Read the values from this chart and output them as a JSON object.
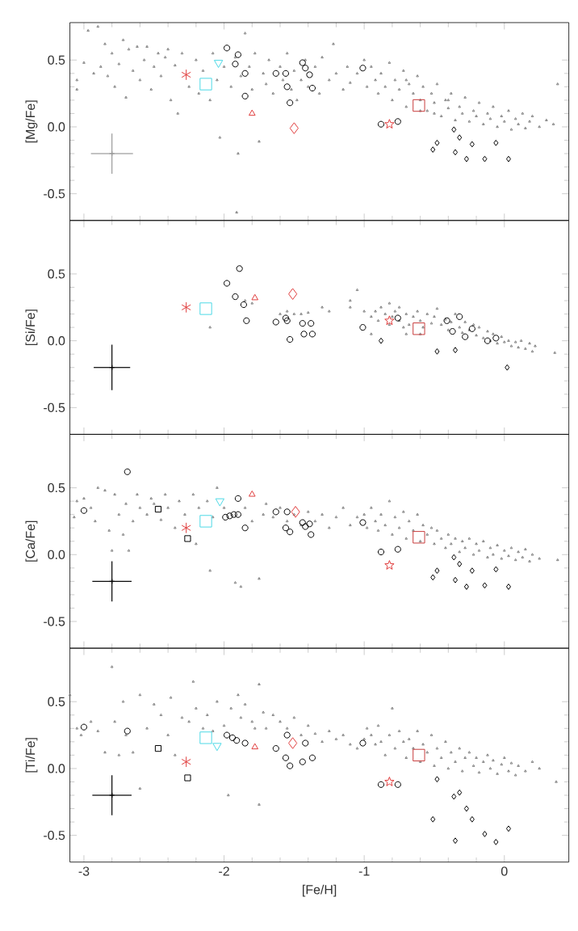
{
  "chart_data": [
    {
      "type": "scatter",
      "ylabel": "[Mg/Fe]",
      "xlim": [
        -3.1,
        0.46
      ],
      "ylim": [
        -0.7,
        0.78
      ],
      "xticks": [
        -3,
        -2,
        -1,
        0
      ],
      "yticks": [
        {
          "value": -0.5,
          "label": "-0.5"
        },
        {
          "value": 0,
          "label": "0.0"
        },
        {
          "value": 0.5,
          "label": "0.5"
        }
      ],
      "tick_labels": "y",
      "series": [
        {
          "marker": "triangle",
          "color": "#808080",
          "x": [
            -3.05,
            -3.05,
            -3.0,
            -2.97,
            -2.93,
            -2.9,
            -2.88,
            -2.85,
            -2.83,
            -2.8,
            -2.78,
            -2.75,
            -2.72,
            -2.7,
            -2.68,
            -2.65,
            -2.62,
            -2.6,
            -2.57,
            -2.55,
            -2.52,
            -2.5,
            -2.47,
            -2.45,
            -2.42,
            -2.4,
            -2.38,
            -2.35,
            -2.33,
            -2.3,
            -2.25,
            -2.2,
            -2.18,
            -2.15,
            -2.1,
            -2.08,
            -2.05,
            -2.03,
            -2.0,
            -1.95,
            -1.92,
            -1.9,
            -1.88,
            -1.85,
            -1.82,
            -1.8,
            -1.78,
            -1.75,
            -1.72,
            -1.7,
            -1.68,
            -1.65,
            -1.6,
            -1.58,
            -1.55,
            -1.52,
            -1.5,
            -1.48,
            -1.45,
            -1.42,
            -1.4,
            -1.35,
            -1.32,
            -1.3,
            -1.25,
            -1.22,
            -1.2,
            -1.15,
            -1.12,
            -1.1,
            -1.05,
            -1.0,
            -1.91,
            -0.98,
            -0.95,
            -0.92,
            -0.9,
            -0.88,
            -0.85,
            -0.82,
            -0.8,
            -0.78,
            -0.75,
            -0.72,
            -0.7,
            -0.68,
            -0.65,
            -0.62,
            -0.6,
            -0.58,
            -0.55,
            -0.52,
            -0.5,
            -0.48,
            -0.45,
            -0.42,
            -0.4,
            -0.38,
            -0.35,
            -0.32,
            -0.3,
            -0.28,
            -0.25,
            -0.22,
            -0.2,
            -0.18,
            -0.15,
            -0.12,
            -0.1,
            -0.08,
            -0.05,
            -0.02,
            0.0,
            0.03,
            0.05,
            0.08,
            0.1,
            0.13,
            0.15,
            0.18,
            0.2,
            0.25,
            0.3,
            0.38,
            0.35,
            -0.7,
            -0.6,
            -0.5,
            -0.4
          ],
          "values": [
            0.35,
            0.28,
            0.48,
            0.72,
            0.4,
            0.75,
            0.45,
            0.62,
            0.38,
            0.55,
            0.3,
            0.47,
            0.65,
            0.22,
            0.58,
            0.42,
            0.6,
            0.35,
            0.5,
            0.6,
            0.28,
            0.45,
            0.55,
            0.38,
            0.52,
            0.58,
            0.2,
            0.46,
            0.1,
            0.55,
            0.3,
            0.5,
            0.25,
            0.42,
            0.2,
            0.55,
            0.35,
            -0.08,
            0.45,
            0.3,
            0.52,
            -0.2,
            0.38,
            0.7,
            0.45,
            0.28,
            0.55,
            -0.11,
            0.4,
            0.32,
            0.5,
            0.25,
            0.45,
            0.35,
            0.55,
            0.28,
            0.42,
            0.2,
            0.35,
            0.5,
            0.3,
            0.45,
            0.25,
            0.52,
            0.35,
            0.62,
            0.4,
            0.28,
            0.45,
            0.33,
            0.4,
            0.5,
            -0.64,
            0.3,
            0.45,
            0.35,
            0.25,
            0.4,
            0.3,
            0.48,
            0.2,
            0.35,
            0.28,
            0.42,
            0.15,
            0.32,
            0.25,
            0.38,
            0.2,
            0.3,
            0.12,
            0.25,
            0.18,
            0.32,
            0.08,
            0.2,
            0.14,
            0.25,
            0.05,
            0.15,
            0.1,
            0.22,
            0.04,
            0.12,
            0.08,
            0.18,
            0.02,
            0.1,
            0.06,
            0.15,
            0.0,
            0.08,
            0.04,
            0.12,
            -0.02,
            0.06,
            0.02,
            0.1,
            -0.01,
            0.04,
            0.08,
            0.0,
            0.05,
            0.32,
            0.02,
            0.35,
            0.12,
            0.1,
            0.2
          ]
        },
        {
          "marker": "circle",
          "color": "#000000",
          "x": [
            -1.9,
            -1.85,
            -1.85,
            -1.63,
            -1.56,
            -1.55,
            -1.53,
            -1.44,
            -1.42,
            -1.39,
            -1.37,
            -1.01,
            -0.88,
            -0.76
          ],
          "values": [
            0.54,
            0.4,
            0.23,
            0.4,
            0.4,
            0.3,
            0.18,
            0.48,
            0.44,
            0.39,
            0.29,
            0.44,
            0.02,
            0.04
          ]
        },
        {
          "marker": "diamond",
          "color": "#000000",
          "x": [
            -0.36,
            -0.48,
            -0.51,
            -0.32,
            -0.35,
            -0.23,
            -0.27,
            -0.14,
            -0.06,
            0.03
          ],
          "values": [
            -0.02,
            -0.12,
            -0.17,
            -0.08,
            -0.19,
            -0.13,
            -0.24,
            -0.24,
            -0.12,
            -0.24
          ]
        },
        {
          "marker": "circle",
          "color": "#000000",
          "x": [
            -1.98,
            -1.92
          ],
          "values": [
            0.59,
            0.47
          ]
        },
        {
          "marker": "cross",
          "color": "#e03c3c",
          "x": [
            -2.27
          ],
          "values": [
            0.39
          ]
        },
        {
          "marker": "triangle down",
          "color": "#4dd9e6",
          "x": [
            -2.04
          ],
          "values": [
            0.48
          ]
        },
        {
          "marker": "square",
          "color": "#4dd9e6",
          "x": [
            -2.13
          ],
          "values": [
            0.32
          ]
        },
        {
          "marker": "triangle",
          "color": "#e03c3c",
          "x": [
            -1.8
          ],
          "values": [
            0.1
          ]
        },
        {
          "marker": "diamond",
          "color": "#e03c3c",
          "x": [
            -1.5
          ],
          "values": [
            -0.01
          ]
        },
        {
          "marker": "square",
          "color": "#c83c3c",
          "x": [
            -0.61
          ],
          "values": [
            0.16
          ]
        },
        {
          "marker": "star",
          "color": "#e03c3c",
          "x": [
            -0.82
          ],
          "values": [
            0.02
          ]
        },
        {
          "color": "#999999",
          "x": [
            -2.8
          ],
          "values": [
            -0.2
          ],
          "errors": [
            0.15
          ],
          "xerrors": [
            0.15
          ]
        }
      ]
    },
    {
      "type": "scatter",
      "ylabel": "[Si/Fe]",
      "xlim": [
        -3.1,
        0.46
      ],
      "ylim": [
        -0.7,
        0.9
      ],
      "xticks": [
        -3,
        -2,
        -1,
        0
      ],
      "yticks": [
        {
          "value": -0.5,
          "label": "-0.5"
        },
        {
          "value": 0,
          "label": "0.0"
        },
        {
          "value": 0.5,
          "label": "0.5"
        }
      ],
      "tick_labels": "y",
      "series": [
        {
          "marker": "triangle",
          "color": "#808080",
          "x": [
            -2.1,
            -1.85,
            -1.8,
            -1.6,
            -1.55,
            -1.5,
            -1.45,
            -1.4,
            -1.3,
            -1.25,
            -1.1,
            -1.1,
            -1.05,
            -1.0,
            -0.95,
            -0.92,
            -0.9,
            -0.88,
            -0.85,
            -0.82,
            -0.8,
            -0.78,
            -0.75,
            -0.72,
            -0.7,
            -0.68,
            -0.65,
            -0.62,
            -0.6,
            -0.58,
            -0.55,
            -0.52,
            -0.5,
            -0.48,
            -0.45,
            -0.42,
            -0.4,
            -0.38,
            -0.35,
            -0.32,
            -0.3,
            -0.28,
            -0.25,
            -0.22,
            -0.2,
            -0.18,
            -0.15,
            -0.12,
            -0.1,
            -0.08,
            -0.05,
            -0.02,
            0.0,
            0.03,
            0.05,
            0.08,
            0.1,
            0.12,
            0.15,
            0.18,
            0.2,
            0.22,
            0.36,
            -0.7,
            -0.95,
            -0.6,
            -0.75,
            -0.82
          ],
          "values": [
            0.1,
            0.3,
            0.28,
            0.2,
            0.22,
            0.2,
            0.2,
            0.21,
            0.25,
            0.22,
            0.25,
            0.3,
            0.38,
            0.22,
            0.18,
            0.22,
            0.15,
            0.25,
            0.2,
            0.12,
            0.18,
            0.22,
            0.15,
            0.1,
            0.2,
            0.12,
            0.18,
            0.22,
            0.15,
            0.1,
            0.2,
            0.13,
            0.18,
            0.24,
            0.12,
            0.16,
            0.08,
            0.14,
            0.2,
            0.1,
            0.06,
            0.14,
            0.08,
            0.12,
            0.04,
            0.1,
            0.02,
            0.07,
            0.0,
            0.05,
            -0.02,
            0.03,
            -0.01,
            0.0,
            -0.04,
            -0.01,
            -0.05,
            0.0,
            -0.06,
            -0.02,
            -0.08,
            -0.04,
            -0.09,
            0.05,
            0.05,
            0.05,
            0.25,
            0.28
          ]
        },
        {
          "marker": "circle",
          "color": "#000000",
          "x": [
            -1.89,
            -1.86,
            -1.84,
            -1.63,
            -1.56,
            -1.55,
            -1.53,
            -1.44,
            -1.38,
            -1.43,
            -1.37,
            -1.01,
            -0.76,
            -0.41,
            -0.32,
            -0.37,
            -0.23,
            -0.28,
            -0.12,
            -0.06
          ],
          "values": [
            0.54,
            0.27,
            0.15,
            0.14,
            0.17,
            0.15,
            0.01,
            0.13,
            0.13,
            0.05,
            0.05,
            0.1,
            0.17,
            0.15,
            0.18,
            0.07,
            0.09,
            0.03,
            0.0,
            0.02
          ]
        },
        {
          "marker": "diamond",
          "color": "#000000",
          "x": [
            -0.88,
            -0.48,
            -0.35,
            0.02
          ],
          "values": [
            0.0,
            -0.08,
            -0.07,
            -0.2
          ]
        },
        {
          "marker": "circle",
          "color": "#000000",
          "x": [
            -1.98,
            -1.92
          ],
          "values": [
            0.43,
            0.33
          ]
        },
        {
          "marker": "cross",
          "color": "#e03c3c",
          "x": [
            -2.27
          ],
          "values": [
            0.25
          ]
        },
        {
          "marker": "square",
          "color": "#4dd9e6",
          "x": [
            -2.13
          ],
          "values": [
            0.24
          ]
        },
        {
          "marker": "triangle",
          "color": "#e03c3c",
          "x": [
            -1.78
          ],
          "values": [
            0.32
          ]
        },
        {
          "marker": "diamond",
          "color": "#e03c3c",
          "x": [
            -1.51
          ],
          "values": [
            0.35
          ]
        },
        {
          "marker": "square",
          "color": "#c83c3c",
          "x": [
            -0.61
          ],
          "values": [
            0.09
          ]
        },
        {
          "marker": "star",
          "color": "#e03c3c",
          "x": [
            -0.82
          ],
          "values": [
            0.15
          ]
        },
        {
          "color": "#000000",
          "x": [
            -2.8
          ],
          "values": [
            -0.2
          ],
          "errors": [
            0.17
          ],
          "xerrors": [
            0.13
          ]
        }
      ]
    },
    {
      "type": "scatter",
      "ylabel": "[Ca/Fe]",
      "xlim": [
        -3.1,
        0.46
      ],
      "ylim": [
        -0.7,
        0.9
      ],
      "xticks": [
        -3,
        -2,
        -1,
        0
      ],
      "yticks": [
        {
          "value": -0.5,
          "label": "-0.5"
        },
        {
          "value": 0,
          "label": "0.0"
        },
        {
          "value": 0.5,
          "label": "0.5"
        }
      ],
      "tick_labels": "y",
      "series": [
        {
          "marker": "triangle",
          "color": "#808080",
          "x": [
            -3.07,
            -3.05,
            -3.0,
            -2.95,
            -2.92,
            -2.9,
            -2.85,
            -2.82,
            -2.8,
            -2.78,
            -2.75,
            -2.72,
            -2.7,
            -2.68,
            -2.65,
            -2.62,
            -2.6,
            -2.55,
            -2.52,
            -2.5,
            -2.45,
            -2.42,
            -2.4,
            -2.35,
            -2.32,
            -2.28,
            -2.22,
            -2.2,
            -2.18,
            -2.12,
            -2.1,
            -2.08,
            -2.05,
            -2.0,
            -1.92,
            -1.88,
            -1.85,
            -1.8,
            -1.75,
            -1.72,
            -1.7,
            -1.65,
            -1.6,
            -1.55,
            -1.5,
            -1.45,
            -1.4,
            -1.35,
            -1.3,
            -1.25,
            -1.2,
            -1.15,
            -1.1,
            -1.05,
            -1.0,
            -0.98,
            -0.95,
            -0.92,
            -0.9,
            -0.88,
            -0.85,
            -0.82,
            -0.8,
            -0.78,
            -0.75,
            -0.72,
            -0.7,
            -0.68,
            -0.65,
            -0.62,
            -0.6,
            -0.58,
            -0.55,
            -0.52,
            -0.5,
            -0.48,
            -0.45,
            -0.42,
            -0.4,
            -0.38,
            -0.35,
            -0.32,
            -0.3,
            -0.28,
            -0.25,
            -0.22,
            -0.2,
            -0.18,
            -0.15,
            -0.12,
            -0.1,
            -0.08,
            -0.05,
            -0.02,
            0.0,
            0.03,
            0.05,
            0.08,
            0.1,
            0.13,
            0.15,
            0.18,
            0.2,
            0.25,
            0.38
          ],
          "values": [
            0.28,
            0.4,
            0.42,
            0.35,
            0.25,
            0.5,
            0.48,
            0.18,
            0.03,
            0.45,
            0.3,
            0.15,
            0.38,
            0.03,
            0.25,
            0.45,
            0.35,
            0.3,
            0.42,
            0.38,
            0.26,
            0.45,
            0.35,
            0.2,
            0.4,
            0.3,
            0.45,
            0.08,
            0.35,
            0.4,
            -0.12,
            0.28,
            0.5,
            0.35,
            -0.21,
            -0.24,
            0.35,
            0.25,
            -0.18,
            0.3,
            0.38,
            0.28,
            0.35,
            0.25,
            0.3,
            0.22,
            0.32,
            0.25,
            0.3,
            0.2,
            0.28,
            0.35,
            0.22,
            0.28,
            0.3,
            0.2,
            0.35,
            0.25,
            0.18,
            0.3,
            0.22,
            0.4,
            0.15,
            0.28,
            0.2,
            0.32,
            0.12,
            0.25,
            0.18,
            0.3,
            0.1,
            0.22,
            0.15,
            0.2,
            0.08,
            0.18,
            0.12,
            0.05,
            0.15,
            0.08,
            0.12,
            0.02,
            0.1,
            0.05,
            0.12,
            0.0,
            0.08,
            0.03,
            0.1,
            -0.02,
            0.05,
            0.0,
            0.07,
            -0.03,
            0.03,
            -0.01,
            0.05,
            -0.04,
            0.02,
            -0.02,
            0.04,
            -0.05,
            0.0,
            -0.03,
            -0.04
          ]
        },
        {
          "marker": "circle",
          "color": "#000000",
          "x": [
            -2.69,
            -3.0,
            -1.9,
            -1.85,
            -1.63,
            -1.56,
            -1.55,
            -1.53,
            -1.44,
            -1.42,
            -1.38,
            -1.39,
            -1.01,
            -0.88,
            -0.76
          ],
          "values": [
            0.62,
            0.33,
            0.42,
            0.2,
            0.32,
            0.2,
            0.32,
            0.17,
            0.24,
            0.21,
            0.15,
            0.23,
            0.24,
            0.02,
            0.04
          ]
        },
        {
          "marker": "diamond",
          "color": "#000000",
          "x": [
            -0.36,
            -0.48,
            -0.51,
            -0.32,
            -0.35,
            -0.23,
            -0.27,
            -0.14,
            -0.06,
            0.03
          ],
          "values": [
            -0.02,
            -0.12,
            -0.17,
            -0.07,
            -0.19,
            -0.12,
            -0.24,
            -0.23,
            -0.11,
            -0.24
          ]
        },
        {
          "marker": "circle",
          "color": "#000000",
          "x": [
            -1.99,
            -1.96,
            -1.93,
            -1.9
          ],
          "values": [
            0.28,
            0.29,
            0.3,
            0.3
          ]
        },
        {
          "marker": "square",
          "color": "#000000",
          "x": [
            -2.47
          ],
          "values": [
            0.34
          ]
        },
        {
          "marker": "square",
          "color": "#000000",
          "x": [
            -2.26
          ],
          "values": [
            0.12
          ]
        },
        {
          "marker": "cross",
          "color": "#e03c3c",
          "x": [
            -2.27
          ],
          "values": [
            0.2
          ]
        },
        {
          "marker": "square",
          "color": "#4dd9e6",
          "x": [
            -2.13
          ],
          "values": [
            0.25
          ]
        },
        {
          "marker": "triangle down",
          "color": "#4dd9e6",
          "x": [
            -2.03
          ],
          "values": [
            0.4
          ]
        },
        {
          "marker": "triangle",
          "color": "#e03c3c",
          "x": [
            -1.8
          ],
          "values": [
            0.45
          ]
        },
        {
          "marker": "diamond",
          "color": "#e03c3c",
          "x": [
            -1.49
          ],
          "values": [
            0.32
          ]
        },
        {
          "marker": "square",
          "color": "#c83c3c",
          "x": [
            -0.61
          ],
          "values": [
            0.13
          ]
        },
        {
          "marker": "star",
          "color": "#e03c3c",
          "x": [
            -0.82
          ],
          "values": [
            -0.08
          ]
        },
        {
          "color": "#000000",
          "x": [
            -2.8
          ],
          "values": [
            -0.2
          ],
          "errors": [
            0.15
          ],
          "xerrors": [
            0.14
          ]
        }
      ]
    },
    {
      "type": "scatter",
      "xlabel": "[Fe/H]",
      "ylabel": "[Ti/Fe]",
      "xlim": [
        -3.1,
        0.46
      ],
      "ylim": [
        -0.7,
        0.9
      ],
      "xticks": [
        -3,
        -2,
        -1,
        0
      ],
      "yticks": [
        {
          "value": -0.5,
          "label": "-0.5"
        },
        {
          "value": 0,
          "label": "0.0"
        },
        {
          "value": 0.5,
          "label": "0.5"
        }
      ],
      "series": [
        {
          "marker": "triangle",
          "color": "#808080",
          "x": [
            -3.1,
            -3.05,
            -3.02,
            -2.95,
            -2.9,
            -2.85,
            -2.8,
            -2.78,
            -2.75,
            -2.72,
            -2.7,
            -2.65,
            -2.6,
            -2.6,
            -2.55,
            -2.5,
            -2.45,
            -2.4,
            -2.38,
            -2.35,
            -2.3,
            -2.25,
            -2.22,
            -2.2,
            -2.15,
            -2.12,
            -2.08,
            -2.05,
            -2.0,
            -1.97,
            -1.95,
            -1.9,
            -1.88,
            -1.85,
            -1.8,
            -1.78,
            -1.75,
            -1.75,
            -1.72,
            -1.7,
            -1.65,
            -1.6,
            -1.55,
            -1.5,
            -1.45,
            -1.4,
            -1.35,
            -1.3,
            -1.25,
            -1.2,
            -1.15,
            -1.1,
            -1.05,
            -1.0,
            -0.98,
            -0.95,
            -0.92,
            -0.9,
            -0.88,
            -0.85,
            -0.82,
            -0.8,
            -0.78,
            -0.75,
            -0.72,
            -0.7,
            -0.68,
            -0.65,
            -0.62,
            -0.6,
            -0.58,
            -0.55,
            -0.52,
            -0.5,
            -0.48,
            -0.45,
            -0.42,
            -0.4,
            -0.38,
            -0.35,
            -0.32,
            -0.3,
            -0.28,
            -0.25,
            -0.22,
            -0.2,
            -0.18,
            -0.15,
            -0.12,
            -0.1,
            -0.08,
            -0.05,
            -0.02,
            0.0,
            0.03,
            0.05,
            0.08,
            0.1,
            0.15,
            0.2,
            0.25,
            0.37
          ],
          "values": [
            0.55,
            0.3,
            0.25,
            0.35,
            0.28,
            0.12,
            0.76,
            0.35,
            0.1,
            0.5,
            0.25,
            0.12,
            0.55,
            -0.15,
            0.3,
            0.48,
            0.4,
            0.25,
            0.53,
            0.1,
            0.38,
            0.35,
            0.65,
            0.45,
            0.3,
            0.4,
            0.28,
            0.5,
            0.32,
            -0.2,
            0.45,
            0.55,
            0.38,
            0.48,
            0.35,
            0.3,
            0.63,
            -0.27,
            0.42,
            0.3,
            0.4,
            0.35,
            0.3,
            0.38,
            0.25,
            0.32,
            0.26,
            0.2,
            0.28,
            0.22,
            0.25,
            0.18,
            0.15,
            0.22,
            0.3,
            0.25,
            0.18,
            0.32,
            0.2,
            0.1,
            0.25,
            0.45,
            0.15,
            0.28,
            0.2,
            0.08,
            0.22,
            0.15,
            0.28,
            0.05,
            0.18,
            0.12,
            0.25,
            0.02,
            0.15,
            0.08,
            0.2,
            0.0,
            0.12,
            0.05,
            0.15,
            -0.02,
            0.08,
            0.12,
            0.02,
            0.08,
            -0.03,
            0.05,
            0.1,
            0.0,
            0.06,
            -0.04,
            0.03,
            0.08,
            -0.02,
            0.04,
            -0.05,
            0.02,
            -0.02,
            0.05,
            0.0,
            -0.1
          ]
        },
        {
          "marker": "circle",
          "color": "#000000",
          "x": [
            -3.0,
            -2.69,
            -1.85,
            -1.63,
            -1.56,
            -1.53,
            -1.55,
            -1.44,
            -1.42,
            -1.37,
            -1.01,
            -0.88,
            -0.76
          ],
          "values": [
            0.31,
            0.28,
            0.19,
            0.15,
            0.08,
            0.02,
            0.25,
            0.05,
            0.19,
            0.08,
            0.19,
            -0.12,
            -0.12
          ]
        },
        {
          "marker": "diamond",
          "color": "#000000",
          "x": [
            -0.48,
            -0.36,
            -0.32,
            -0.27,
            -0.23,
            -0.51,
            -0.35,
            -0.14,
            -0.06,
            0.03
          ],
          "values": [
            -0.08,
            -0.21,
            -0.18,
            -0.3,
            -0.38,
            -0.38,
            -0.54,
            -0.49,
            -0.55,
            -0.45
          ]
        },
        {
          "marker": "circle",
          "color": "#000000",
          "x": [
            -1.98,
            -1.94,
            -1.91
          ],
          "values": [
            0.25,
            0.23,
            0.21
          ]
        },
        {
          "marker": "square",
          "color": "#000000",
          "x": [
            -2.47
          ],
          "values": [
            0.15
          ]
        },
        {
          "marker": "square",
          "color": "#000000",
          "x": [
            -2.26
          ],
          "values": [
            -0.07
          ]
        },
        {
          "marker": "cross",
          "color": "#e03c3c",
          "x": [
            -2.27
          ],
          "values": [
            0.05
          ]
        },
        {
          "marker": "square",
          "color": "#4dd9e6",
          "x": [
            -2.13
          ],
          "values": [
            0.23
          ]
        },
        {
          "marker": "triangle down",
          "color": "#4dd9e6",
          "x": [
            -2.05
          ],
          "values": [
            0.17
          ]
        },
        {
          "marker": "triangle",
          "color": "#e03c3c",
          "x": [
            -1.78
          ],
          "values": [
            0.16
          ]
        },
        {
          "marker": "diamond",
          "color": "#e03c3c",
          "x": [
            -1.51
          ],
          "values": [
            0.19
          ]
        },
        {
          "marker": "square",
          "color": "#c83c3c",
          "x": [
            -0.61
          ],
          "values": [
            0.1
          ]
        },
        {
          "marker": "star",
          "color": "#e03c3c",
          "x": [
            -0.82
          ],
          "values": [
            -0.1
          ]
        },
        {
          "color": "#000000",
          "x": [
            -2.8
          ],
          "values": [
            -0.2
          ],
          "errors": [
            0.15
          ],
          "xerrors": [
            0.14
          ]
        }
      ]
    }
  ]
}
